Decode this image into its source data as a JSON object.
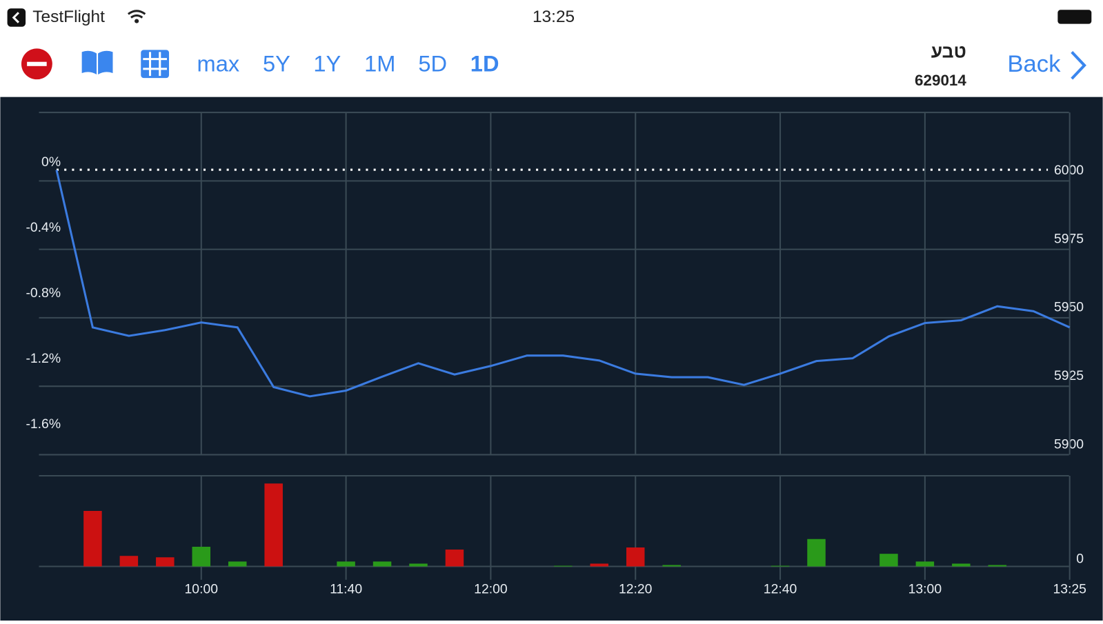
{
  "status_bar": {
    "app": "TestFlight",
    "time": "13:25"
  },
  "toolbar": {
    "ranges": [
      "max",
      "5Y",
      "1Y",
      "1M",
      "5D",
      "1D"
    ],
    "stock_name": "טבע",
    "stock_id": "629014",
    "back": "Back"
  },
  "chart_data": [
    {
      "type": "line",
      "x": [
        0,
        1,
        2,
        3,
        4,
        5,
        6,
        7,
        8,
        9,
        10,
        11,
        12,
        13,
        14,
        15,
        16,
        17,
        18,
        19,
        20,
        21,
        22,
        23,
        24,
        25,
        26,
        27,
        28
      ],
      "xlim": [
        0,
        28
      ],
      "xticks": [
        {
          "value": 4,
          "label": "10:00"
        },
        {
          "value": 8,
          "label": "11:40"
        },
        {
          "value": 12,
          "label": "12:00"
        },
        {
          "value": 16,
          "label": "12:20"
        },
        {
          "value": 20,
          "label": "12:40"
        },
        {
          "value": 24,
          "label": "13:00"
        },
        {
          "value": 28,
          "label": "13:25"
        }
      ],
      "values": [
        6004,
        5946.5,
        5943.4,
        5945.5,
        5948.3,
        5946.5,
        5924.7,
        5921.3,
        5923.4,
        5928.5,
        5933.4,
        5929.3,
        5932.4,
        5936.2,
        5936.2,
        5934.4,
        5929.6,
        5928.3,
        5928.3,
        5925.5,
        5929.6,
        5934.2,
        5935.2,
        5943.2,
        5948.1,
        5949.1,
        5954.2,
        5952.4,
        5946.5
      ],
      "color": "#3b7be0",
      "ylim": [
        5900,
        6025
      ],
      "yticks": [
        5900,
        5925,
        5950,
        5975,
        6000
      ],
      "y2lim": [
        -1.74,
        0.35
      ],
      "y2ticks": [
        {
          "value": 0,
          "label": "0%"
        },
        {
          "value": -0.4,
          "label": "-0.4%"
        },
        {
          "value": -0.8,
          "label": "-0.8%"
        },
        {
          "value": -1.2,
          "label": "-1.2%"
        },
        {
          "value": -1.6,
          "label": "-1.6%"
        }
      ],
      "grid": true
    },
    {
      "type": "bar",
      "x": [
        0,
        1,
        2,
        3,
        4,
        5,
        6,
        7,
        8,
        9,
        10,
        11,
        12,
        13,
        14,
        15,
        16,
        17,
        18,
        19,
        20,
        21,
        22,
        23,
        24,
        25,
        26,
        27,
        28
      ],
      "values": [
        0,
        79,
        15,
        13,
        28,
        7,
        118,
        0,
        7,
        7,
        4,
        24,
        0,
        0,
        1,
        4,
        27,
        2,
        0,
        0,
        1,
        39,
        0,
        18,
        7,
        4,
        2,
        0,
        0
      ],
      "colors": [
        "#cc1111",
        "#cc1111",
        "#cc1111",
        "#cc1111",
        "#2a9a1a",
        "#2a9a1a",
        "#cc1111",
        "#2a9a1a",
        "#2a9a1a",
        "#2a9a1a",
        "#2a9a1a",
        "#cc1111",
        "#2a9a1a",
        "#2a9a1a",
        "#2a9a1a",
        "#cc1111",
        "#cc1111",
        "#2a9a1a",
        "#2a9a1a",
        "#2a9a1a",
        "#2a9a1a",
        "#2a9a1a",
        "#2a9a1a",
        "#2a9a1a",
        "#2a9a1a",
        "#2a9a1a",
        "#2a9a1a",
        "#2a9a1a",
        "#2a9a1a"
      ],
      "ylim": [
        0,
        129
      ],
      "yticks": [
        0
      ]
    }
  ]
}
